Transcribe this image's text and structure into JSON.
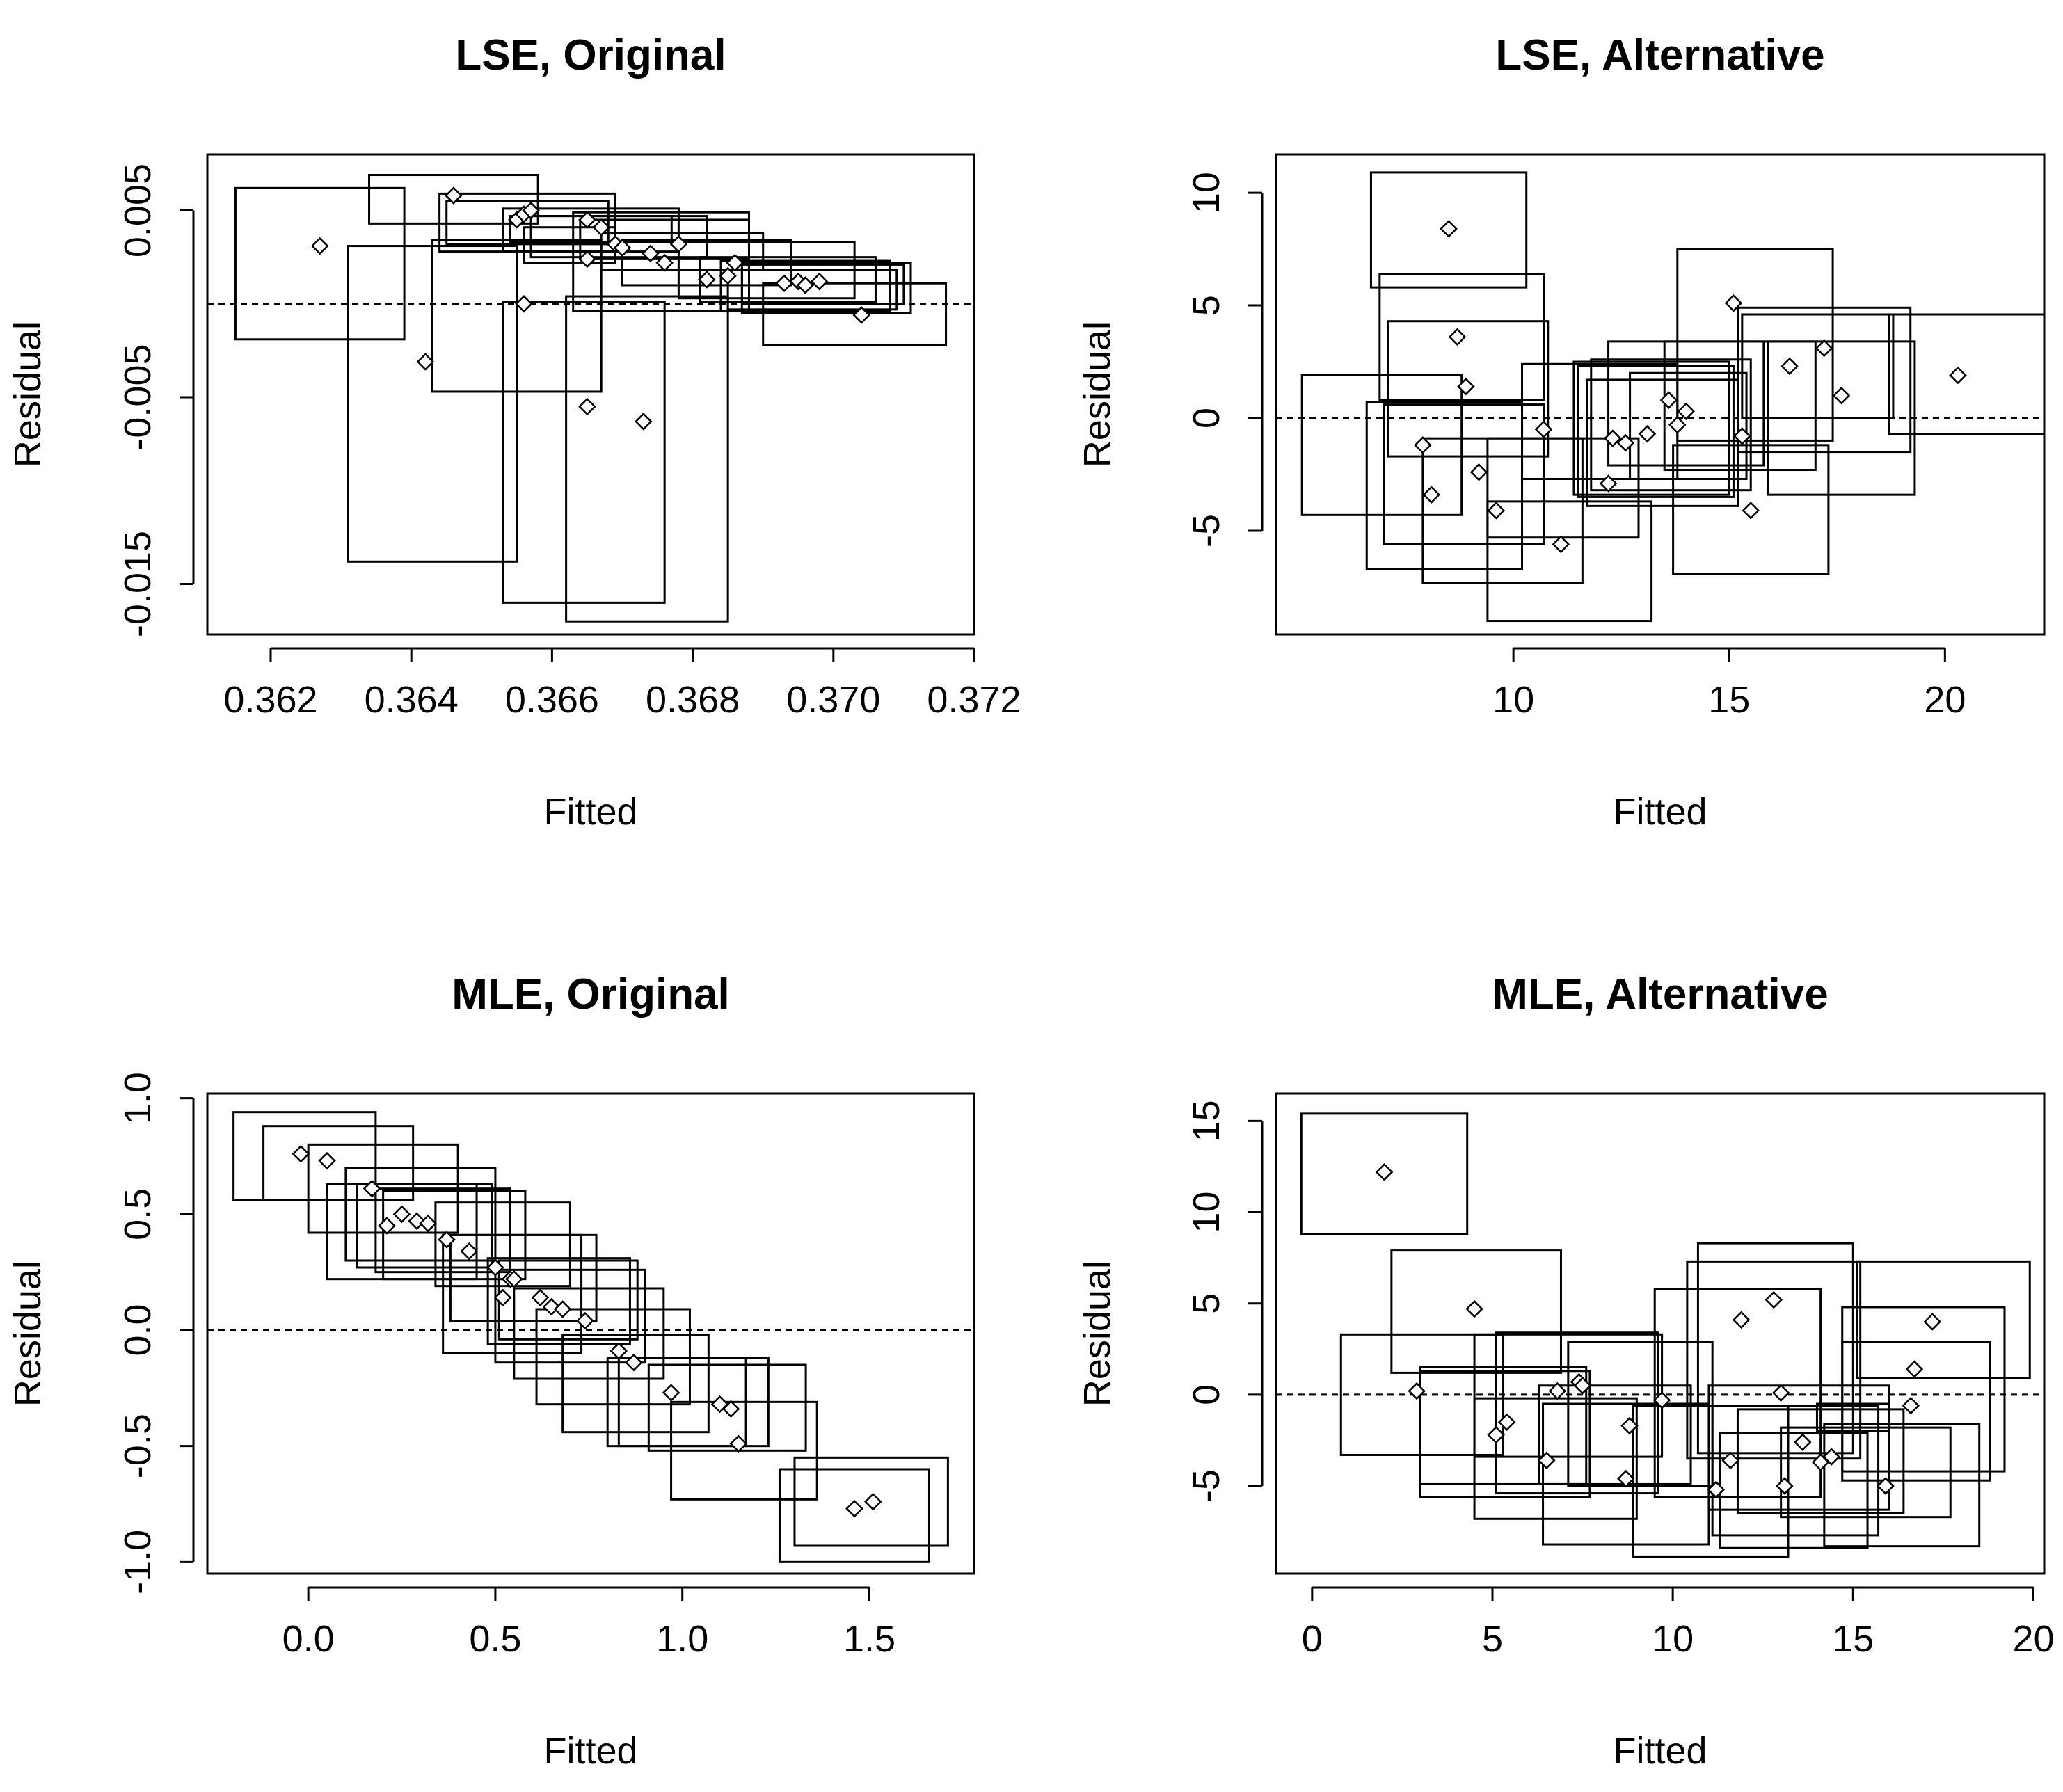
{
  "chart_data": [
    {
      "type": "scatter",
      "title": "LSE, Original",
      "xlabel": "Fitted",
      "ylabel": "Residual",
      "xlim": [
        0.3611,
        0.372
      ],
      "ylim": [
        -0.0177,
        0.008
      ],
      "xticks": [
        0.362,
        0.364,
        0.366,
        0.368,
        0.37,
        0.372
      ],
      "xtick_labels": [
        "0.362",
        "0.364",
        "0.366",
        "0.368",
        "0.370",
        "0.372"
      ],
      "yticks": [
        0.005,
        -0.005,
        -0.015
      ],
      "ytick_labels": [
        "0.005",
        "-0.005",
        "-0.015"
      ],
      "reference_line": 0,
      "points": [
        [
          0.3627,
          0.0031
        ],
        [
          0.3646,
          0.0058
        ],
        [
          0.3655,
          0.0045
        ],
        [
          0.3656,
          0.0048
        ],
        [
          0.3657,
          0.005
        ],
        [
          0.3665,
          0.0045
        ],
        [
          0.3667,
          0.0041
        ],
        [
          0.3669,
          0.0032
        ],
        [
          0.367,
          0.003
        ],
        [
          0.3674,
          0.0027
        ],
        [
          0.3676,
          0.0022
        ],
        [
          0.3678,
          0.0032
        ],
        [
          0.3682,
          0.0013
        ],
        [
          0.3685,
          0.0015
        ],
        [
          0.3686,
          0.0022
        ],
        [
          0.3693,
          0.0011
        ],
        [
          0.3695,
          0.0012
        ],
        [
          0.3696,
          0.001
        ],
        [
          0.3698,
          0.0012
        ],
        [
          0.3704,
          -0.0006
        ],
        [
          0.3665,
          0.0024
        ],
        [
          0.3656,
          0.0
        ],
        [
          0.3642,
          -0.0031
        ],
        [
          0.3665,
          -0.0055
        ],
        [
          0.3673,
          -0.0063
        ]
      ],
      "rects": [
        [
          0.3615,
          0.3639,
          -0.0019,
          0.0062
        ],
        [
          0.3634,
          0.3658,
          0.0043,
          0.0069
        ],
        [
          0.3644,
          0.3669,
          0.0028,
          0.0059
        ],
        [
          0.3645,
          0.3668,
          0.0032,
          0.0055
        ],
        [
          0.3653,
          0.3678,
          0.0028,
          0.0051
        ],
        [
          0.3654,
          0.3677,
          0.0033,
          0.0047
        ],
        [
          0.3657,
          0.3682,
          0.0025,
          0.0047
        ],
        [
          0.3664,
          0.3688,
          0.0024,
          0.0045
        ],
        [
          0.3667,
          0.369,
          0.0018,
          0.0038
        ],
        [
          0.367,
          0.3694,
          0.001,
          0.0034
        ],
        [
          0.3678,
          0.3703,
          0.0003,
          0.0033
        ],
        [
          0.3681,
          0.3706,
          0.0001,
          0.0025
        ],
        [
          0.3684,
          0.3708,
          -0.0004,
          0.0023
        ],
        [
          0.3685,
          0.3709,
          -0.0003,
          0.0018
        ],
        [
          0.3687,
          0.371,
          0.0,
          0.0021
        ],
        [
          0.3687,
          0.3711,
          -0.0005,
          0.0022
        ],
        [
          0.369,
          0.3716,
          -0.0022,
          0.0011
        ],
        [
          0.3663,
          0.3688,
          -0.0004,
          0.0049
        ],
        [
          0.3631,
          0.3655,
          -0.0138,
          0.0031
        ],
        [
          0.3643,
          0.3667,
          -0.0047,
          0.0034
        ],
        [
          0.3653,
          0.3676,
          -0.016,
          0.0001
        ],
        [
          0.3662,
          0.3685,
          -0.017,
          0.0004
        ],
        [
          0.3656,
          0.3669,
          0.0022,
          0.0041
        ]
      ]
    },
    {
      "type": "scatter",
      "title": "LSE, Alternative",
      "xlabel": "Fitted",
      "ylabel": "Residual",
      "xlim": [
        4.5,
        22.3
      ],
      "ylim": [
        -9.6,
        11.7
      ],
      "xticks": [
        10,
        15,
        20
      ],
      "xtick_labels": [
        "10",
        "15",
        "20"
      ],
      "yticks": [
        10,
        5,
        0,
        -5
      ],
      "ytick_labels": [
        "10",
        "5",
        "0",
        "-5"
      ],
      "reference_line": 0,
      "points": [
        [
          8.5,
          8.4
        ],
        [
          8.7,
          3.6
        ],
        [
          8.9,
          1.4
        ],
        [
          7.9,
          -1.2
        ],
        [
          8.1,
          -3.4
        ],
        [
          9.2,
          -2.4
        ],
        [
          9.6,
          -4.1
        ],
        [
          10.7,
          -0.5
        ],
        [
          11.1,
          -5.6
        ],
        [
          12.2,
          -2.9
        ],
        [
          12.3,
          -0.9
        ],
        [
          12.6,
          -1.1
        ],
        [
          13.1,
          -0.7
        ],
        [
          13.6,
          0.8
        ],
        [
          13.8,
          -0.3
        ],
        [
          14.0,
          0.3
        ],
        [
          15.1,
          5.1
        ],
        [
          15.3,
          -0.8
        ],
        [
          15.5,
          -4.1
        ],
        [
          16.4,
          2.3
        ],
        [
          17.2,
          3.1
        ],
        [
          17.6,
          1.0
        ],
        [
          20.3,
          1.9
        ]
      ],
      "rects": [
        [
          6.7,
          10.3,
          5.8,
          10.9
        ],
        [
          6.9,
          10.7,
          0.8,
          6.4
        ],
        [
          7.1,
          10.8,
          -1.7,
          4.3
        ],
        [
          5.1,
          8.8,
          -4.3,
          1.9
        ],
        [
          6.6,
          10.2,
          -6.7,
          0.7
        ],
        [
          7.0,
          10.7,
          -5.6,
          0.6
        ],
        [
          7.9,
          11.6,
          -7.3,
          -0.9
        ],
        [
          9.4,
          12.9,
          -5.3,
          -0.9
        ],
        [
          10.2,
          13.8,
          -2.7,
          2.4
        ],
        [
          9.4,
          13.2,
          -9.0,
          -3.7
        ],
        [
          11.4,
          15.0,
          -3.4,
          2.5
        ],
        [
          11.5,
          15.1,
          -3.5,
          2.3
        ],
        [
          11.7,
          15.2,
          -3.9,
          1.7
        ],
        [
          11.8,
          15.5,
          -3.2,
          2.6
        ],
        [
          12.2,
          15.8,
          -2.1,
          3.4
        ],
        [
          13.8,
          17.4,
          -1.0,
          7.5
        ],
        [
          13.7,
          17.3,
          -6.9,
          -1.2
        ],
        [
          15.3,
          18.8,
          0.0,
          4.6
        ],
        [
          15.2,
          19.2,
          -1.5,
          4.9
        ],
        [
          15.9,
          19.3,
          -3.4,
          3.4
        ],
        [
          18.7,
          22.3,
          -0.7,
          4.6
        ],
        [
          13.5,
          17.0,
          -2.3,
          3.4
        ],
        [
          12.7,
          15.4,
          -2.7,
          2.0
        ]
      ]
    },
    {
      "type": "scatter",
      "title": "MLE, Original",
      "xlabel": "Fitted",
      "ylabel": "Residual",
      "xlim": [
        -0.27,
        1.78
      ],
      "ylim": [
        -1.05,
        1.02
      ],
      "xticks": [
        0.0,
        0.5,
        1.0,
        1.5
      ],
      "xtick_labels": [
        "0.0",
        "0.5",
        "1.0",
        "1.5"
      ],
      "yticks": [
        1.0,
        0.5,
        0.0,
        -0.5,
        -1.0
      ],
      "ytick_labels": [
        "1.0",
        "0.5",
        "0.0",
        "-0.5",
        "-1.0"
      ],
      "reference_line": 0,
      "points": [
        [
          -0.02,
          0.76
        ],
        [
          0.05,
          0.73
        ],
        [
          0.17,
          0.61
        ],
        [
          0.21,
          0.45
        ],
        [
          0.25,
          0.5
        ],
        [
          0.29,
          0.47
        ],
        [
          0.32,
          0.46
        ],
        [
          0.37,
          0.39
        ],
        [
          0.43,
          0.34
        ],
        [
          0.5,
          0.27
        ],
        [
          0.52,
          0.14
        ],
        [
          0.54,
          0.22
        ],
        [
          0.55,
          0.22
        ],
        [
          0.62,
          0.14
        ],
        [
          0.65,
          0.1
        ],
        [
          0.68,
          0.09
        ],
        [
          0.74,
          0.04
        ],
        [
          0.83,
          -0.09
        ],
        [
          0.87,
          -0.14
        ],
        [
          0.97,
          -0.27
        ],
        [
          1.1,
          -0.32
        ],
        [
          1.13,
          -0.34
        ],
        [
          1.15,
          -0.49
        ],
        [
          1.46,
          -0.77
        ],
        [
          1.51,
          -0.74
        ]
      ],
      "rects": [
        [
          -0.2,
          0.18,
          0.56,
          0.94
        ],
        [
          -0.12,
          0.28,
          0.56,
          0.88
        ],
        [
          0.0,
          0.4,
          0.42,
          0.8
        ],
        [
          0.05,
          0.45,
          0.22,
          0.63
        ],
        [
          0.1,
          0.5,
          0.3,
          0.7
        ],
        [
          0.13,
          0.49,
          0.27,
          0.63
        ],
        [
          0.18,
          0.54,
          0.25,
          0.61
        ],
        [
          0.2,
          0.58,
          0.22,
          0.6
        ],
        [
          0.34,
          0.7,
          0.19,
          0.55
        ],
        [
          0.36,
          0.73,
          -0.1,
          0.41
        ],
        [
          0.38,
          0.77,
          0.04,
          0.41
        ],
        [
          0.48,
          0.86,
          -0.06,
          0.31
        ],
        [
          0.51,
          0.88,
          -0.04,
          0.3
        ],
        [
          0.5,
          0.9,
          -0.14,
          0.26
        ],
        [
          0.55,
          0.95,
          -0.21,
          0.18
        ],
        [
          0.61,
          1.02,
          -0.32,
          0.09
        ],
        [
          0.68,
          1.07,
          -0.44,
          -0.02
        ],
        [
          0.8,
          1.17,
          -0.5,
          -0.12
        ],
        [
          0.83,
          1.23,
          -0.5,
          -0.12
        ],
        [
          0.97,
          1.36,
          -0.73,
          -0.31
        ],
        [
          0.91,
          1.33,
          -0.52,
          -0.15
        ],
        [
          1.26,
          1.66,
          -1.0,
          -0.6
        ],
        [
          1.3,
          1.71,
          -0.93,
          -0.55
        ]
      ]
    },
    {
      "type": "scatter",
      "title": "MLE, Alternative",
      "xlabel": "Fitted",
      "ylabel": "Residual",
      "xlim": [
        -1.0,
        20.3
      ],
      "ylim": [
        -9.8,
        16.5
      ],
      "xticks": [
        0,
        5,
        10,
        15,
        20
      ],
      "xtick_labels": [
        "0",
        "5",
        "10",
        "15",
        "20"
      ],
      "yticks": [
        15,
        10,
        5,
        0,
        -5
      ],
      "ytick_labels": [
        "15",
        "10",
        "5",
        "0",
        "-5"
      ],
      "reference_line": 0,
      "points": [
        [
          2.0,
          12.2
        ],
        [
          4.5,
          4.7
        ],
        [
          2.9,
          0.2
        ],
        [
          5.1,
          -2.2
        ],
        [
          5.4,
          -1.5
        ],
        [
          6.5,
          -3.6
        ],
        [
          6.8,
          0.2
        ],
        [
          7.4,
          0.7
        ],
        [
          7.5,
          0.5
        ],
        [
          8.7,
          -4.6
        ],
        [
          8.8,
          -1.7
        ],
        [
          9.7,
          -0.3
        ],
        [
          11.2,
          -5.2
        ],
        [
          11.6,
          -3.6
        ],
        [
          11.9,
          4.1
        ],
        [
          12.8,
          5.2
        ],
        [
          13.0,
          0.1
        ],
        [
          13.1,
          -5.0
        ],
        [
          13.6,
          -2.6
        ],
        [
          14.1,
          -3.7
        ],
        [
          14.4,
          -3.4
        ],
        [
          15.9,
          -5.0
        ],
        [
          16.6,
          -0.6
        ],
        [
          16.7,
          1.4
        ],
        [
          17.2,
          4.0
        ]
      ],
      "rects": [
        [
          -0.3,
          4.3,
          8.8,
          15.4
        ],
        [
          2.2,
          6.9,
          1.2,
          7.9
        ],
        [
          0.8,
          5.3,
          -3.3,
          3.3
        ],
        [
          3.0,
          7.6,
          -4.9,
          1.5
        ],
        [
          3.0,
          7.7,
          -5.6,
          1.3
        ],
        [
          4.5,
          9.0,
          -6.8,
          -0.2
        ],
        [
          4.5,
          9.7,
          -3.4,
          3.3
        ],
        [
          5.1,
          9.6,
          -5.4,
          3.4
        ],
        [
          6.4,
          11.0,
          -8.2,
          -0.5
        ],
        [
          6.3,
          10.5,
          -4.9,
          0.5
        ],
        [
          7.1,
          11.1,
          -5.0,
          2.9
        ],
        [
          8.9,
          13.2,
          -8.9,
          -0.6
        ],
        [
          9.5,
          14.1,
          -5.6,
          5.8
        ],
        [
          10.4,
          15.2,
          -3.5,
          7.3
        ],
        [
          11.3,
          15.4,
          -8.4,
          -2.1
        ],
        [
          11.1,
          15.7,
          -7.7,
          -0.6
        ],
        [
          10.7,
          15.0,
          -3.2,
          8.3
        ],
        [
          11.0,
          16.0,
          -6.3,
          0.5
        ],
        [
          11.8,
          16.4,
          -6.5,
          -0.8
        ],
        [
          13.0,
          17.7,
          -6.7,
          -1.8
        ],
        [
          14.2,
          18.5,
          -8.3,
          -1.6
        ],
        [
          14.7,
          18.8,
          -4.7,
          2.9
        ],
        [
          14.7,
          19.2,
          -4.2,
          4.8
        ],
        [
          15.1,
          19.9,
          0.9,
          7.3
        ],
        [
          14.0,
          16.0,
          -2.0,
          -0.5
        ]
      ]
    }
  ]
}
